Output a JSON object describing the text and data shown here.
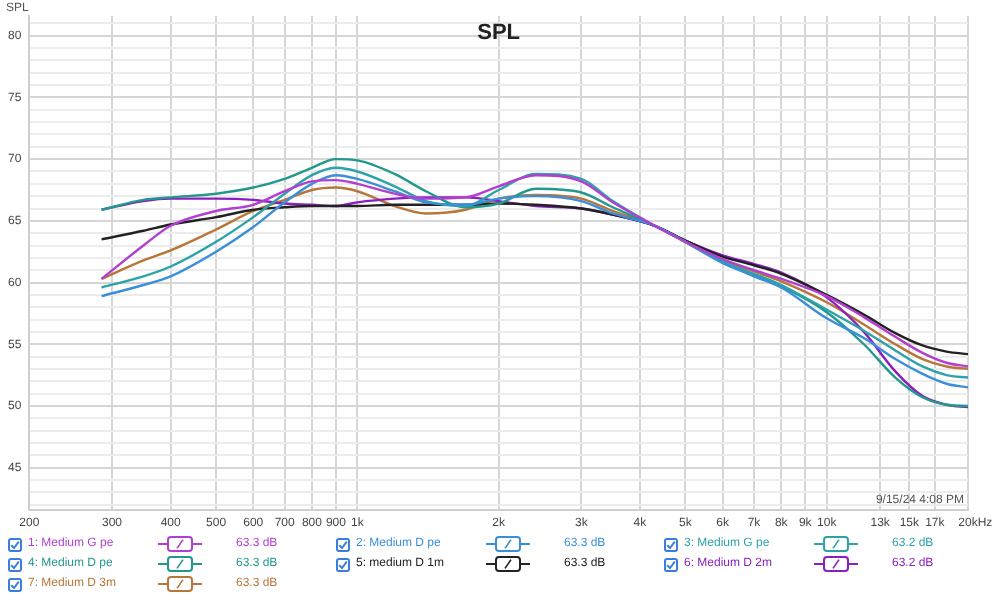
{
  "chart_data": {
    "type": "line",
    "title": "SPL",
    "ylabel": "SPL",
    "xlim": [
      200,
      20000
    ],
    "ylim": [
      41.6,
      81.6
    ],
    "log": "x",
    "grid": true,
    "legend": "bottom",
    "xticks": [
      200,
      300,
      400,
      500,
      600,
      700,
      800,
      900,
      {
        "value": 1000,
        "label": "1k"
      },
      {
        "value": 2000,
        "label": "2k"
      },
      {
        "value": 3000,
        "label": "3k"
      },
      {
        "value": 4000,
        "label": "4k"
      },
      {
        "value": 5000,
        "label": "5k"
      },
      {
        "value": 6000,
        "label": "6k"
      },
      {
        "value": 7000,
        "label": "7k"
      },
      {
        "value": 8000,
        "label": "8k"
      },
      {
        "value": 9000,
        "label": "9k"
      },
      {
        "value": 10000,
        "label": "10k"
      },
      {
        "value": 13000,
        "label": "13k"
      },
      {
        "value": 15000,
        "label": "15k"
      },
      {
        "value": 17000,
        "label": "17k"
      },
      {
        "value": 20000,
        "label": "20k"
      }
    ],
    "xlabel": "Hz",
    "yticks": [
      {
        "value": 42,
        "label": null
      },
      {
        "value": 43,
        "label": null
      },
      {
        "value": 44,
        "label": null
      },
      45,
      {
        "value": 46,
        "label": null
      },
      {
        "value": 47,
        "label": null
      },
      {
        "value": 48,
        "label": null
      },
      {
        "value": 49,
        "label": null
      },
      50,
      {
        "value": 51,
        "label": null
      },
      {
        "value": 52,
        "label": null
      },
      {
        "value": 53,
        "label": null
      },
      {
        "value": 54,
        "label": null
      },
      55,
      {
        "value": 56,
        "label": null
      },
      {
        "value": 57,
        "label": null
      },
      {
        "value": 58,
        "label": null
      },
      {
        "value": 59,
        "label": null
      },
      60,
      {
        "value": 61,
        "label": null
      },
      {
        "value": 62,
        "label": null
      },
      {
        "value": 63,
        "label": null
      },
      {
        "value": 64,
        "label": null
      },
      65,
      {
        "value": 66,
        "label": null
      },
      {
        "value": 67,
        "label": null
      },
      {
        "value": 68,
        "label": null
      },
      {
        "value": 69,
        "label": null
      },
      70,
      {
        "value": 71,
        "label": null
      },
      {
        "value": 72,
        "label": null
      },
      {
        "value": 73,
        "label": null
      },
      {
        "value": 74,
        "label": null
      },
      75,
      {
        "value": 76,
        "label": null
      },
      {
        "value": 77,
        "label": null
      },
      {
        "value": 78,
        "label": null
      },
      {
        "value": 79,
        "label": null
      },
      80,
      {
        "value": 81,
        "label": null
      }
    ],
    "x": [
      285,
      350,
      400,
      500,
      600,
      700,
      800,
      900,
      1000,
      1200,
      1400,
      1700,
      2000,
      2400,
      3000,
      3500,
      4300,
      5000,
      6000,
      7000,
      8000,
      10000,
      12000,
      14000,
      16000,
      18000,
      20000
    ],
    "series": [
      {
        "name": "1: Medium G pe",
        "color": "#b23fcf",
        "values": [
          60.3,
          63.0,
          64.6,
          65.8,
          66.3,
          67.4,
          68.2,
          68.3,
          68.0,
          67.2,
          66.8,
          66.9,
          67.8,
          68.7,
          68.2,
          66.5,
          64.6,
          63.3,
          61.9,
          61.0,
          60.3,
          58.9,
          57.2,
          55.6,
          54.3,
          53.5,
          53.2
        ]
      },
      {
        "name": "2: Medium D pe",
        "color": "#3b8fd9",
        "values": [
          58.9,
          59.8,
          60.5,
          62.5,
          64.5,
          66.5,
          68.0,
          68.7,
          68.4,
          67.4,
          66.5,
          66.3,
          66.8,
          67.0,
          66.6,
          65.6,
          64.6,
          63.3,
          61.6,
          60.5,
          59.6,
          57.1,
          55.5,
          53.8,
          52.6,
          51.8,
          51.5
        ]
      },
      {
        "name": "3: Medium G pe",
        "color": "#2ba3a8",
        "values": [
          59.6,
          60.5,
          61.3,
          63.3,
          65.3,
          67.2,
          68.7,
          69.3,
          69.0,
          67.8,
          66.6,
          66.2,
          67.5,
          68.8,
          68.4,
          66.6,
          64.6,
          63.3,
          61.7,
          60.7,
          59.8,
          57.8,
          56.1,
          54.5,
          53.2,
          52.5,
          52.3
        ]
      },
      {
        "name": "4: Medium D pe",
        "color": "#22998c",
        "values": [
          65.9,
          66.7,
          66.9,
          67.2,
          67.7,
          68.4,
          69.3,
          70.0,
          69.9,
          68.8,
          67.4,
          66.1,
          66.4,
          67.6,
          67.3,
          66.1,
          64.6,
          63.3,
          61.6,
          60.6,
          59.7,
          57.6,
          55.0,
          52.3,
          50.7,
          50.1,
          50.0
        ]
      },
      {
        "name": "5: medium D 1m",
        "color": "#222222",
        "values": [
          63.5,
          64.2,
          64.7,
          65.3,
          65.9,
          66.1,
          66.2,
          66.2,
          66.2,
          66.3,
          66.3,
          66.3,
          66.4,
          66.3,
          66.0,
          65.5,
          64.6,
          63.4,
          62.1,
          61.4,
          60.7,
          59.0,
          57.4,
          55.9,
          54.9,
          54.4,
          54.2
        ]
      },
      {
        "name": "6: Medium D 2m",
        "color": "#8a1fc0",
        "values": [
          65.9,
          66.6,
          66.8,
          66.8,
          66.7,
          66.4,
          66.3,
          66.2,
          66.5,
          66.8,
          66.9,
          66.9,
          66.6,
          66.2,
          66.0,
          65.5,
          64.6,
          63.4,
          62.2,
          61.5,
          60.8,
          58.8,
          56.0,
          52.8,
          50.8,
          50.1,
          49.9
        ]
      },
      {
        "name": "7: Medium D 3m",
        "color": "#b8773a",
        "values": [
          60.3,
          61.8,
          62.6,
          64.3,
          65.8,
          66.7,
          67.5,
          67.7,
          67.4,
          66.2,
          65.6,
          65.9,
          66.8,
          67.1,
          66.8,
          65.8,
          64.6,
          63.3,
          61.8,
          60.9,
          60.1,
          58.4,
          56.6,
          55.0,
          53.8,
          53.2,
          53.0
        ]
      }
    ],
    "annotations": [
      "9/15/24 4:08 PM",
      "63.3 dB",
      "63.3 dB",
      "63.2 dB",
      "63.3 dB",
      "63.3 dB",
      "63.2 dB",
      "63.3 dB"
    ]
  }
}
